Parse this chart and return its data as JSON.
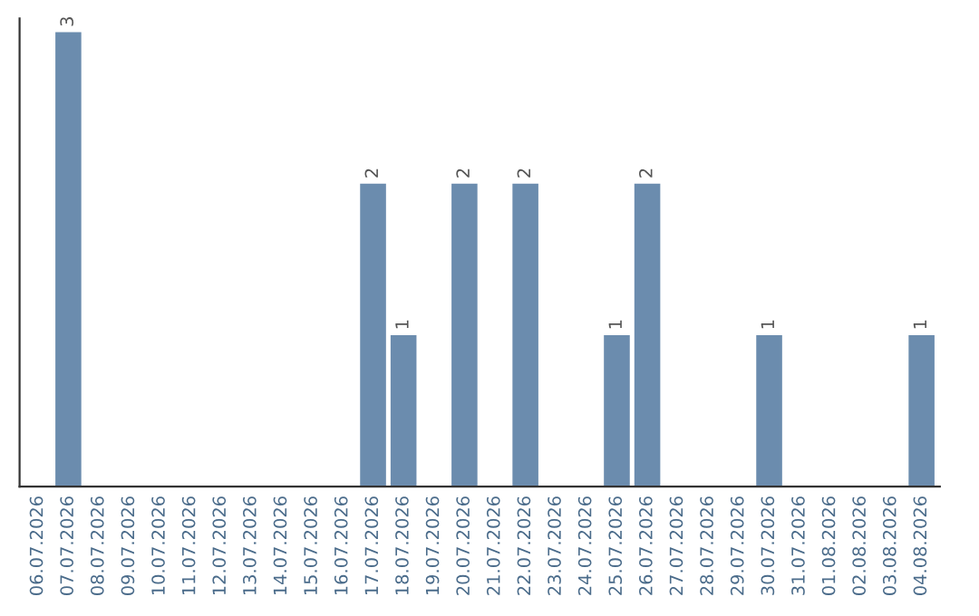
{
  "chart_data": {
    "type": "bar",
    "categories": [
      "06.07.2026",
      "07.07.2026",
      "08.07.2026",
      "09.07.2026",
      "10.07.2026",
      "11.07.2026",
      "12.07.2026",
      "13.07.2026",
      "14.07.2026",
      "15.07.2026",
      "16.07.2026",
      "17.07.2026",
      "18.07.2026",
      "19.07.2026",
      "20.07.2026",
      "21.07.2026",
      "22.07.2026",
      "23.07.2026",
      "24.07.2026",
      "25.07.2026",
      "26.07.2026",
      "27.07.2026",
      "28.07.2026",
      "29.07.2026",
      "30.07.2026",
      "31.07.2026",
      "01.08.2026",
      "02.08.2026",
      "03.08.2026",
      "04.08.2026"
    ],
    "values": [
      0,
      3,
      0,
      0,
      0,
      0,
      0,
      0,
      0,
      0,
      0,
      2,
      1,
      0,
      2,
      0,
      2,
      0,
      0,
      1,
      2,
      0,
      0,
      0,
      1,
      0,
      0,
      0,
      0,
      1
    ],
    "value_labels": [
      null,
      "3",
      null,
      null,
      null,
      null,
      null,
      null,
      null,
      null,
      null,
      "2",
      "1",
      null,
      "2",
      null,
      "2",
      null,
      null,
      "1",
      "2",
      null,
      null,
      null,
      "1",
      null,
      null,
      null,
      null,
      "1"
    ],
    "color": "#6b8cae",
    "tick_labels": "x",
    "grid": false,
    "legend": false
  }
}
